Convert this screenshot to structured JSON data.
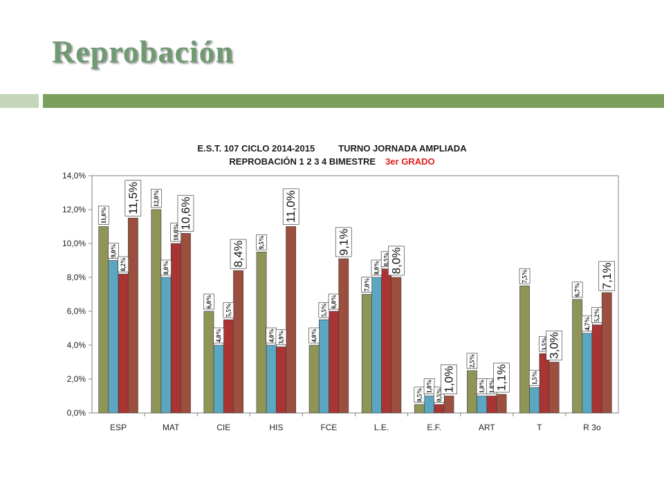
{
  "slide": {
    "title": "Reprobación"
  },
  "chart_header": {
    "line1_left": "E.S.T. 107 CICLO 2014-2015",
    "line1_right": "TURNO JORNADA AMPLIADA",
    "line2_left": "REPROBACIÓN 1 2 3 4  BIMESTRE",
    "line2_right": "3er GRADO",
    "line2_right_color": "#e0201a"
  },
  "colors": {
    "accent_bar_light": "#c5d5b9",
    "accent_bar_dark": "#7ba05b",
    "title": "#6f9a72"
  },
  "chart_data": {
    "type": "bar",
    "categories": [
      "ESP",
      "MAT",
      "CIE",
      "HIS",
      "FCE",
      "L.E.",
      "E.F.",
      "ART",
      "T",
      "R 3o"
    ],
    "ylim": [
      0,
      14
    ],
    "yticks": [
      "0,0%",
      "2,0%",
      "4,0%",
      "6,0%",
      "8,0%",
      "10,0%",
      "12,0%",
      "14,0%"
    ],
    "grid": false,
    "legend": "none",
    "series": [
      {
        "color": "#8f9457",
        "values": [
          11.0,
          12.0,
          6.0,
          9.5,
          4.0,
          7.0,
          0.5,
          2.5,
          7.5,
          6.7
        ],
        "labels": [
          "11,0%",
          "12,0%",
          "6,0%",
          "9,5%",
          "4,0%",
          "7,0%",
          "0,5%",
          "2,5%",
          "7,5%",
          "6,7%"
        ]
      },
      {
        "color": "#5ba6c0",
        "values": [
          9.0,
          8.0,
          4.0,
          4.0,
          5.5,
          8.0,
          1.0,
          1.0,
          1.5,
          4.7
        ],
        "labels": [
          "9,0%",
          "8,0%",
          "4,0%",
          "4,0%",
          "5,5%",
          "8,0%",
          "1,0%",
          "1,0%",
          "1,5%",
          "4,7%"
        ]
      },
      {
        "color": "#a83434",
        "values": [
          8.2,
          10.0,
          5.5,
          3.9,
          6.0,
          8.5,
          0.5,
          1.0,
          3.5,
          5.2
        ],
        "labels": [
          "8,2%",
          "10,0%",
          "5,5%",
          "3,9%",
          "6,0%",
          "8,5%",
          "0,5%",
          "1,0%",
          "3,5%",
          "5,2%"
        ]
      },
      {
        "color": "#9c4f3e",
        "values": [
          11.5,
          10.6,
          8.4,
          11.0,
          9.1,
          8.0,
          1.0,
          1.1,
          3.0,
          7.1
        ],
        "labels": [
          "11,5%",
          "10,6%",
          "8,4%",
          "11,0%",
          "9,1%",
          "8,0%",
          "1,0%",
          "1,1%",
          "3,0%",
          "7,1%"
        ]
      }
    ]
  }
}
